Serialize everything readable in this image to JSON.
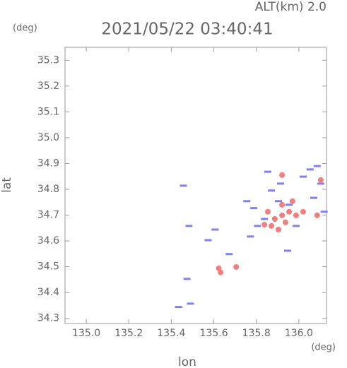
{
  "chart_data": {
    "type": "scatter",
    "title": "2021/05/22 03:40:41",
    "altitude": "ALT(km)  2.0",
    "y_unit": "(deg)",
    "x_unit": "(deg)",
    "xlabel": "lon",
    "ylabel": "lat",
    "xlim": [
      134.9,
      136.13
    ],
    "ylim": [
      34.28,
      35.35
    ],
    "xticks": [
      {
        "value": 135.0,
        "label": "135.0"
      },
      135.2,
      135.4,
      135.6,
      135.8,
      {
        "value": 136.0,
        "label": "136.0"
      }
    ],
    "yticks": [
      34.3,
      34.4,
      34.5,
      34.6,
      34.7,
      34.8,
      34.9,
      {
        "value": 35.0,
        "label": "35.0"
      },
      35.1,
      35.2,
      35.3
    ],
    "series": [
      {
        "color": "#8080ee",
        "x": [
          135.457,
          135.483,
          135.606,
          135.573,
          135.672,
          135.474,
          135.434,
          135.49,
          135.772,
          135.854,
          135.914,
          135.904,
          135.954,
          136.053,
          136.103,
          136.07,
          136.119,
          135.987,
          136.02,
          135.788,
          135.838,
          135.947,
          135.805,
          135.871,
          136.086,
          135.755
        ],
        "y": [
          34.814,
          34.658,
          34.644,
          34.603,
          34.549,
          34.453,
          34.344,
          34.357,
          34.617,
          34.868,
          34.822,
          34.754,
          34.74,
          34.877,
          34.822,
          34.767,
          34.713,
          34.658,
          34.849,
          34.727,
          34.685,
          34.562,
          34.658,
          34.795,
          34.89,
          34.754
        ]
      },
      {
        "color": "#f08080",
        "x": [
          135.623,
          135.632,
          135.921,
          135.887,
          135.954,
          135.987,
          135.871,
          135.904,
          135.937,
          135.838,
          135.921,
          135.97,
          136.086,
          135.921,
          136.103,
          136.02,
          135.705,
          135.854
        ],
        "y": [
          34.494,
          34.478,
          34.699,
          34.685,
          34.713,
          34.699,
          34.658,
          34.644,
          34.672,
          34.663,
          34.855,
          34.754,
          34.699,
          34.74,
          34.836,
          34.713,
          34.499,
          34.713
        ]
      }
    ]
  }
}
